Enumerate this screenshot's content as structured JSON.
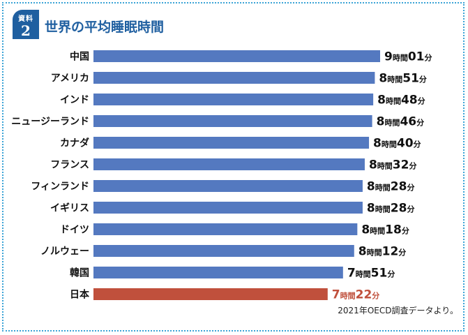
{
  "badge": {
    "label": "資料",
    "number": "2"
  },
  "source": "2021年OECD調査データより。",
  "colors": {
    "bar": "#5479c0",
    "highlight": "#c0503c",
    "title": "#1f5fa0",
    "frame": "#3aa3d6"
  },
  "chart_data": {
    "type": "bar",
    "orientation": "horizontal",
    "title": "世界の平均睡眠時間",
    "xlabel": "",
    "ylabel": "",
    "unit": "minutes",
    "categories": [
      "中国",
      "アメリカ",
      "インド",
      "ニュージーランド",
      "カナダ",
      "フランス",
      "フィンランド",
      "イギリス",
      "ドイツ",
      "ノルウェー",
      "韓国",
      "日本"
    ],
    "values": [
      541,
      531,
      528,
      526,
      520,
      512,
      508,
      508,
      498,
      492,
      471,
      442
    ],
    "value_labels": [
      {
        "h": "9",
        "m": "01"
      },
      {
        "h": "8",
        "m": "51"
      },
      {
        "h": "8",
        "m": "48"
      },
      {
        "h": "8",
        "m": "46"
      },
      {
        "h": "8",
        "m": "40"
      },
      {
        "h": "8",
        "m": "32"
      },
      {
        "h": "8",
        "m": "28"
      },
      {
        "h": "8",
        "m": "28"
      },
      {
        "h": "8",
        "m": "18"
      },
      {
        "h": "8",
        "m": "12"
      },
      {
        "h": "7",
        "m": "51"
      },
      {
        "h": "7",
        "m": "22"
      }
    ],
    "unit_hour": "時間",
    "unit_min": "分",
    "highlight": "日本",
    "xlim": [
      0,
      541
    ]
  }
}
